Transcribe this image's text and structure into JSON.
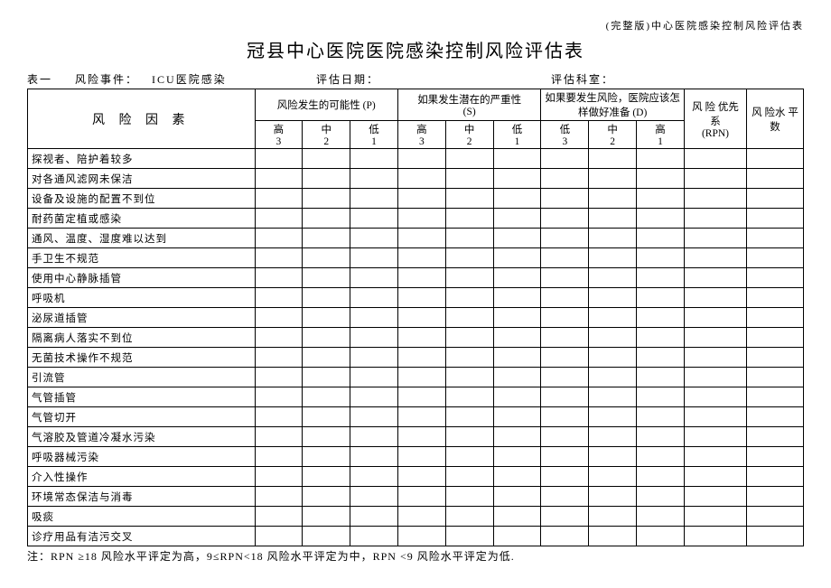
{
  "header_note": "(完整版)中心医院感染控制风险评估表",
  "title": "冠县中心医院医院感染控制风险评估表",
  "meta": {
    "table_no": "表一",
    "event_label": "风险事件：",
    "event_value": "ICU医院感染",
    "date_label": "评估日期：",
    "dept_label": "评估科室："
  },
  "headers": {
    "factor": "风 险 因 素",
    "p": "风险发生的可能性 (P)",
    "s": "如果发生潜在的严重性\n(S)",
    "d": "如果要发生风险，医院应该怎样做好准备 (D)",
    "rpn": "风 险 优先\n系\n(RPN)",
    "level": "风 险水 平\n数",
    "sub": {
      "p_h": "高\n3",
      "p_m": "中\n2",
      "p_l": "低\n1",
      "s_h": "高\n3",
      "s_m": "中\n2",
      "s_l": "低\n1",
      "d_l": "低\n3",
      "d_m": "中\n2",
      "d_h": "高\n1"
    }
  },
  "rows": [
    "探视者、陪护着较多",
    "对各通风滤网未保洁",
    "设备及设施的配置不到位",
    "耐药菌定植或感染",
    "通风、温度、湿度难以达到",
    "手卫生不规范",
    "使用中心静脉插管",
    "呼吸机",
    "泌尿道插管",
    "隔离病人落实不到位",
    "无菌技术操作不规范",
    "引流管",
    "气管插管",
    "气管切开",
    "气溶胶及管道冷凝水污染",
    "呼吸器械污染",
    "介入性操作",
    "环境常态保洁与消毒",
    "吸痰",
    "诊疗用品有洁污交叉"
  ],
  "footnote": "注：RPN ≥18 风险水平评定为高，9≤RPN<18 风险水平评定为中，RPN <9 风险水平评定为低."
}
